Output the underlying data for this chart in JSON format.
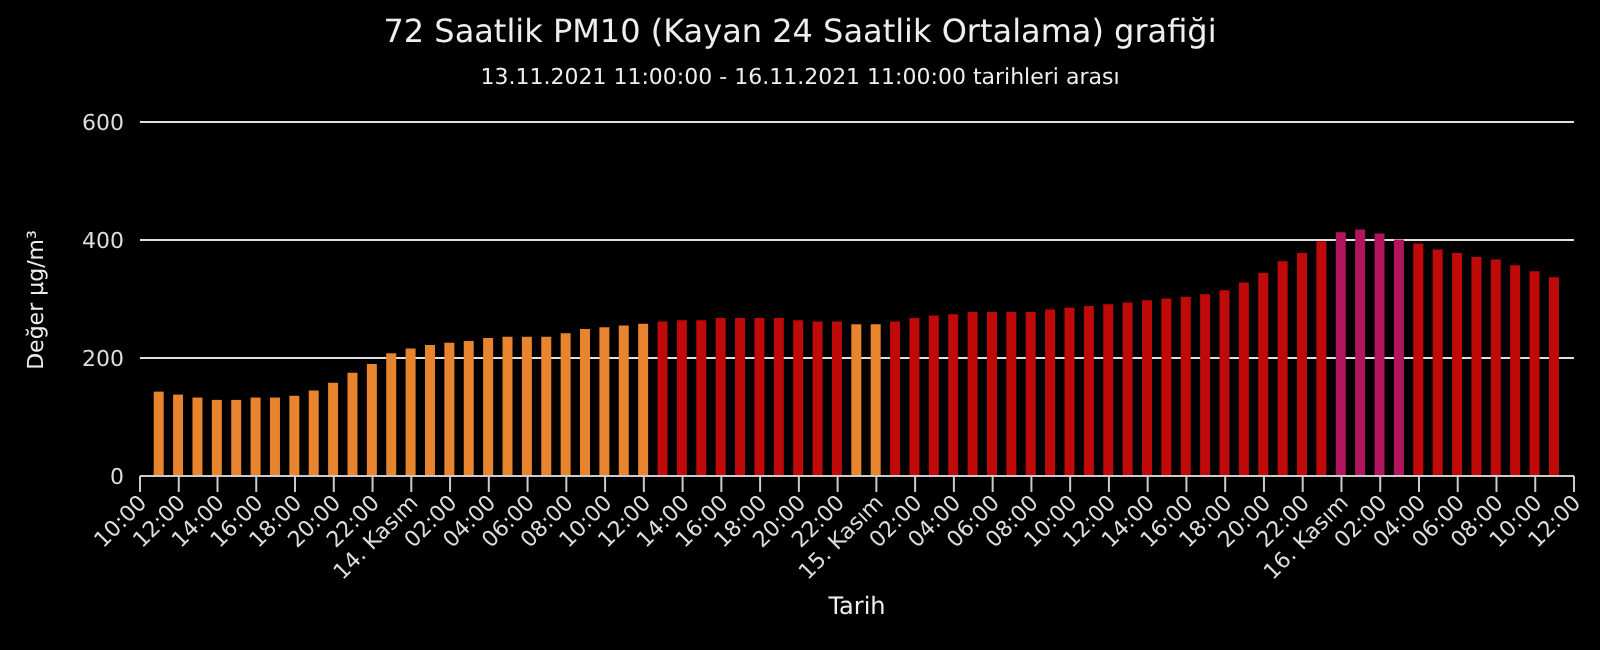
{
  "chart_data": {
    "type": "bar",
    "title": "72 Saatlik PM10 (Kayan 24 Saatlik Ortalama) grafiği",
    "subtitle": "13.11.2021 11:00:00 - 16.11.2021 11:00:00 tarihleri arası",
    "xlabel": "Tarih",
    "ylabel": "Değer µg/m³",
    "x": [
      "2021-11-13T11:00",
      "2021-11-13T12:00",
      "2021-11-13T13:00",
      "2021-11-13T14:00",
      "2021-11-13T15:00",
      "2021-11-13T16:00",
      "2021-11-13T17:00",
      "2021-11-13T18:00",
      "2021-11-13T19:00",
      "2021-11-13T20:00",
      "2021-11-13T21:00",
      "2021-11-13T22:00",
      "2021-11-13T23:00",
      "2021-11-14T00:00",
      "2021-11-14T01:00",
      "2021-11-14T02:00",
      "2021-11-14T03:00",
      "2021-11-14T04:00",
      "2021-11-14T05:00",
      "2021-11-14T06:00",
      "2021-11-14T07:00",
      "2021-11-14T08:00",
      "2021-11-14T09:00",
      "2021-11-14T10:00",
      "2021-11-14T11:00",
      "2021-11-14T12:00",
      "2021-11-14T13:00",
      "2021-11-14T14:00",
      "2021-11-14T15:00",
      "2021-11-14T16:00",
      "2021-11-14T17:00",
      "2021-11-14T18:00",
      "2021-11-14T19:00",
      "2021-11-14T20:00",
      "2021-11-14T21:00",
      "2021-11-14T22:00",
      "2021-11-14T23:00",
      "2021-11-15T00:00",
      "2021-11-15T01:00",
      "2021-11-15T02:00",
      "2021-11-15T03:00",
      "2021-11-15T04:00",
      "2021-11-15T05:00",
      "2021-11-15T06:00",
      "2021-11-15T07:00",
      "2021-11-15T08:00",
      "2021-11-15T09:00",
      "2021-11-15T10:00",
      "2021-11-15T11:00",
      "2021-11-15T12:00",
      "2021-11-15T13:00",
      "2021-11-15T14:00",
      "2021-11-15T15:00",
      "2021-11-15T16:00",
      "2021-11-15T17:00",
      "2021-11-15T18:00",
      "2021-11-15T19:00",
      "2021-11-15T20:00",
      "2021-11-15T21:00",
      "2021-11-15T22:00",
      "2021-11-15T23:00",
      "2021-11-16T00:00",
      "2021-11-16T01:00",
      "2021-11-16T02:00",
      "2021-11-16T03:00",
      "2021-11-16T04:00",
      "2021-11-16T05:00",
      "2021-11-16T06:00",
      "2021-11-16T07:00",
      "2021-11-16T08:00",
      "2021-11-16T09:00",
      "2021-11-16T10:00",
      "2021-11-16T11:00"
    ],
    "values": [
      143,
      138,
      133,
      129,
      129,
      133,
      133,
      136,
      145,
      158,
      175,
      190,
      208,
      216,
      222,
      226,
      229,
      234,
      236,
      236,
      236,
      242,
      249,
      252,
      255,
      258,
      262,
      264,
      264,
      268,
      268,
      268,
      268,
      264,
      262,
      262,
      257,
      257,
      262,
      268,
      272,
      274,
      278,
      278,
      278,
      278,
      282,
      285,
      288,
      291,
      294,
      298,
      301,
      304,
      308,
      315,
      328,
      344,
      364,
      378,
      398,
      413,
      418,
      411,
      401,
      394,
      384,
      378,
      371,
      367,
      357,
      347,
      337
    ],
    "colors": [
      "#e8832e",
      "#e8832e",
      "#e8832e",
      "#e8832e",
      "#e8832e",
      "#e8832e",
      "#e8832e",
      "#e8832e",
      "#e8832e",
      "#e8832e",
      "#e8832e",
      "#e8832e",
      "#e8832e",
      "#e8832e",
      "#e8832e",
      "#e8832e",
      "#e8832e",
      "#e8832e",
      "#e8832e",
      "#e8832e",
      "#e8832e",
      "#e8832e",
      "#e8832e",
      "#e8832e",
      "#e8832e",
      "#e8832e",
      "#c00a0a",
      "#c00a0a",
      "#c00a0a",
      "#c00a0a",
      "#c00a0a",
      "#c00a0a",
      "#c00a0a",
      "#c00a0a",
      "#c00a0a",
      "#c00a0a",
      "#e8832e",
      "#e8832e",
      "#c00a0a",
      "#c00a0a",
      "#c00a0a",
      "#c00a0a",
      "#c00a0a",
      "#c00a0a",
      "#c00a0a",
      "#c00a0a",
      "#c00a0a",
      "#c00a0a",
      "#c00a0a",
      "#c00a0a",
      "#c00a0a",
      "#c00a0a",
      "#c00a0a",
      "#c00a0a",
      "#c00a0a",
      "#c00a0a",
      "#c00a0a",
      "#c00a0a",
      "#c00a0a",
      "#c00a0a",
      "#c00a0a",
      "#b3145e",
      "#b3145e",
      "#b3145e",
      "#b3145e",
      "#c00a0a",
      "#c00a0a",
      "#c00a0a",
      "#c00a0a",
      "#c00a0a",
      "#c00a0a",
      "#c00a0a",
      "#c00a0a"
    ],
    "xlim": [
      "2021-11-13T10:00",
      "2021-11-16T12:00"
    ],
    "xticks": [
      {
        "value": "2021-11-13T10:00",
        "label": "10:00"
      },
      {
        "value": "2021-11-13T12:00",
        "label": "12:00"
      },
      {
        "value": "2021-11-13T14:00",
        "label": "14:00"
      },
      {
        "value": "2021-11-13T16:00",
        "label": "16:00"
      },
      {
        "value": "2021-11-13T18:00",
        "label": "18:00"
      },
      {
        "value": "2021-11-13T20:00",
        "label": "20:00"
      },
      {
        "value": "2021-11-13T22:00",
        "label": "22:00"
      },
      {
        "value": "2021-11-14T00:00",
        "label": "14. Kasım"
      },
      {
        "value": "2021-11-14T02:00",
        "label": "02:00"
      },
      {
        "value": "2021-11-14T04:00",
        "label": "04:00"
      },
      {
        "value": "2021-11-14T06:00",
        "label": "06:00"
      },
      {
        "value": "2021-11-14T08:00",
        "label": "08:00"
      },
      {
        "value": "2021-11-14T10:00",
        "label": "10:00"
      },
      {
        "value": "2021-11-14T12:00",
        "label": "12:00"
      },
      {
        "value": "2021-11-14T14:00",
        "label": "14:00"
      },
      {
        "value": "2021-11-14T16:00",
        "label": "16:00"
      },
      {
        "value": "2021-11-14T18:00",
        "label": "18:00"
      },
      {
        "value": "2021-11-14T20:00",
        "label": "20:00"
      },
      {
        "value": "2021-11-14T22:00",
        "label": "22:00"
      },
      {
        "value": "2021-11-15T00:00",
        "label": "15. Kasım"
      },
      {
        "value": "2021-11-15T02:00",
        "label": "02:00"
      },
      {
        "value": "2021-11-15T04:00",
        "label": "04:00"
      },
      {
        "value": "2021-11-15T06:00",
        "label": "06:00"
      },
      {
        "value": "2021-11-15T08:00",
        "label": "08:00"
      },
      {
        "value": "2021-11-15T10:00",
        "label": "10:00"
      },
      {
        "value": "2021-11-15T12:00",
        "label": "12:00"
      },
      {
        "value": "2021-11-15T14:00",
        "label": "14:00"
      },
      {
        "value": "2021-11-15T16:00",
        "label": "16:00"
      },
      {
        "value": "2021-11-15T18:00",
        "label": "18:00"
      },
      {
        "value": "2021-11-15T20:00",
        "label": "20:00"
      },
      {
        "value": "2021-11-15T22:00",
        "label": "22:00"
      },
      {
        "value": "2021-11-16T00:00",
        "label": "16. Kasım"
      },
      {
        "value": "2021-11-16T02:00",
        "label": "02:00"
      },
      {
        "value": "2021-11-16T04:00",
        "label": "04:00"
      },
      {
        "value": "2021-11-16T06:00",
        "label": "06:00"
      },
      {
        "value": "2021-11-16T08:00",
        "label": "08:00"
      },
      {
        "value": "2021-11-16T10:00",
        "label": "10:00"
      },
      {
        "value": "2021-11-16T12:00",
        "label": "12:00"
      }
    ],
    "ylim": [
      0,
      600
    ],
    "yticks": [
      0,
      200,
      400,
      600
    ],
    "grid": "y"
  }
}
